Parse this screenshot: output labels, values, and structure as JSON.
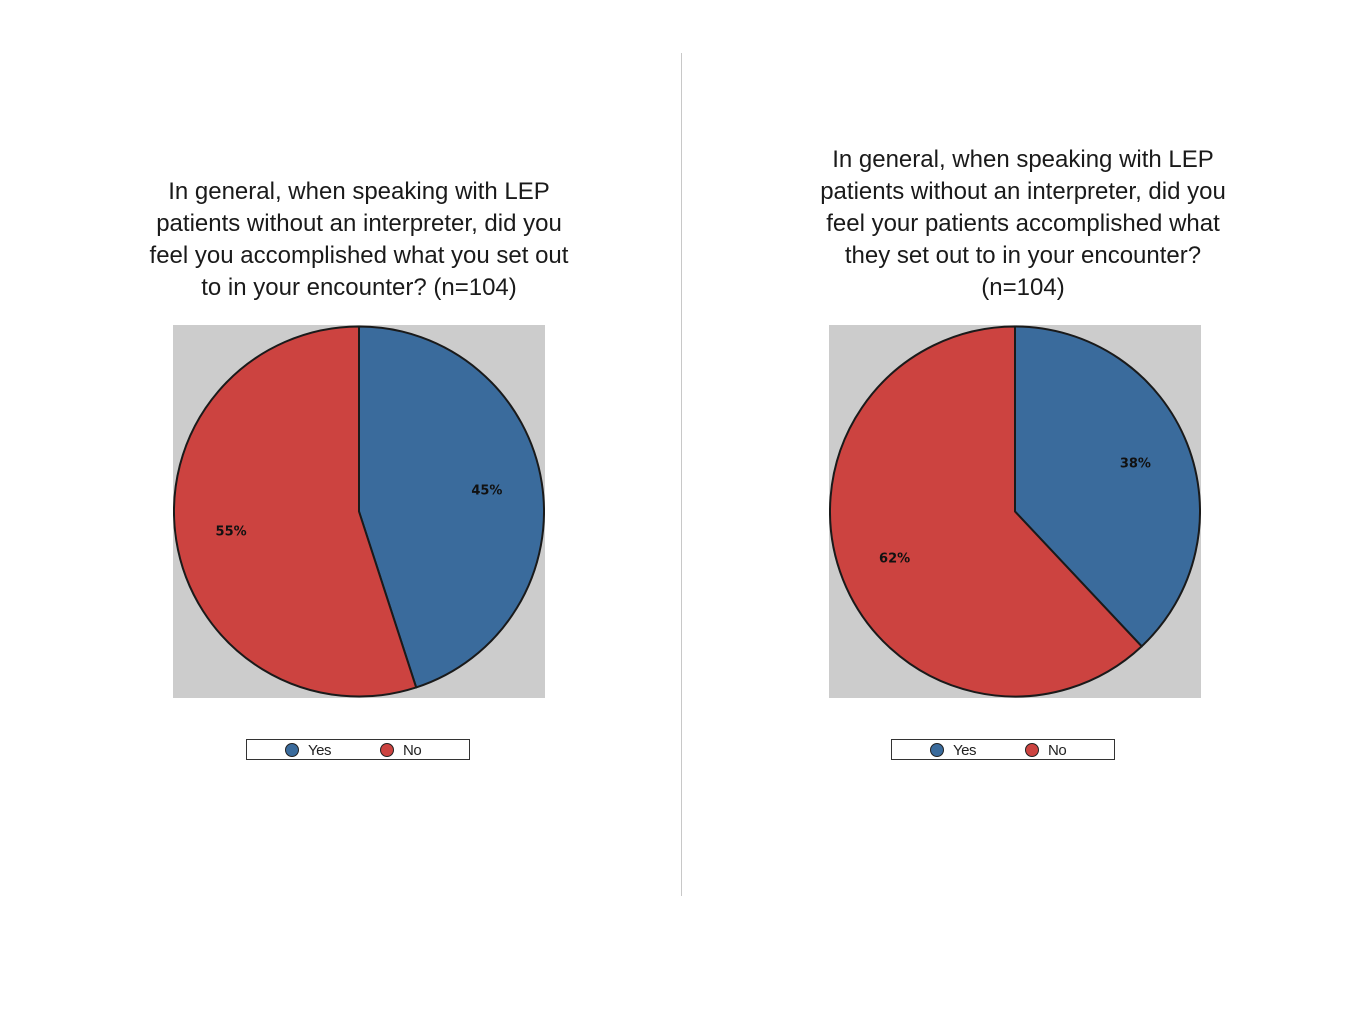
{
  "colors": {
    "yes": "#3a6b9c",
    "no": "#cc4340",
    "plot_background": "#cccccc",
    "outline": "#1a1a1a"
  },
  "chart_data": [
    {
      "type": "pie",
      "title": "In general, when speaking with LEP patients without an interpreter, did you feel you accomplished what you set out to in your encounter? (n=104)",
      "categories": [
        "Yes",
        "No"
      ],
      "values": [
        45,
        55
      ],
      "data_labels": [
        "45%",
        "55%"
      ],
      "colors": [
        "#3a6b9c",
        "#cc4340"
      ],
      "legend": {
        "entries": [
          "Yes",
          "No"
        ],
        "placement": "bottom"
      }
    },
    {
      "type": "pie",
      "title": "In general, when speaking with LEP patients without an interpreter, did you feel your patients accomplished what they set out to in your encounter? (n=104)",
      "categories": [
        "Yes",
        "No"
      ],
      "values": [
        38,
        62
      ],
      "data_labels": [
        "38%",
        "62%"
      ],
      "colors": [
        "#3a6b9c",
        "#cc4340"
      ],
      "legend": {
        "entries": [
          "Yes",
          "No"
        ],
        "placement": "bottom"
      }
    }
  ],
  "panels": {
    "left": {
      "title": "In general, when speaking with LEP\npatients without an interpreter, did you\nfeel you accomplished what you set out\nto in your encounter? (n=104)"
    },
    "right": {
      "title": "In general, when speaking with LEP\npatients without an interpreter, did you\nfeel your patients accomplished what\nthey set out to in your encounter?\n(n=104)"
    }
  }
}
